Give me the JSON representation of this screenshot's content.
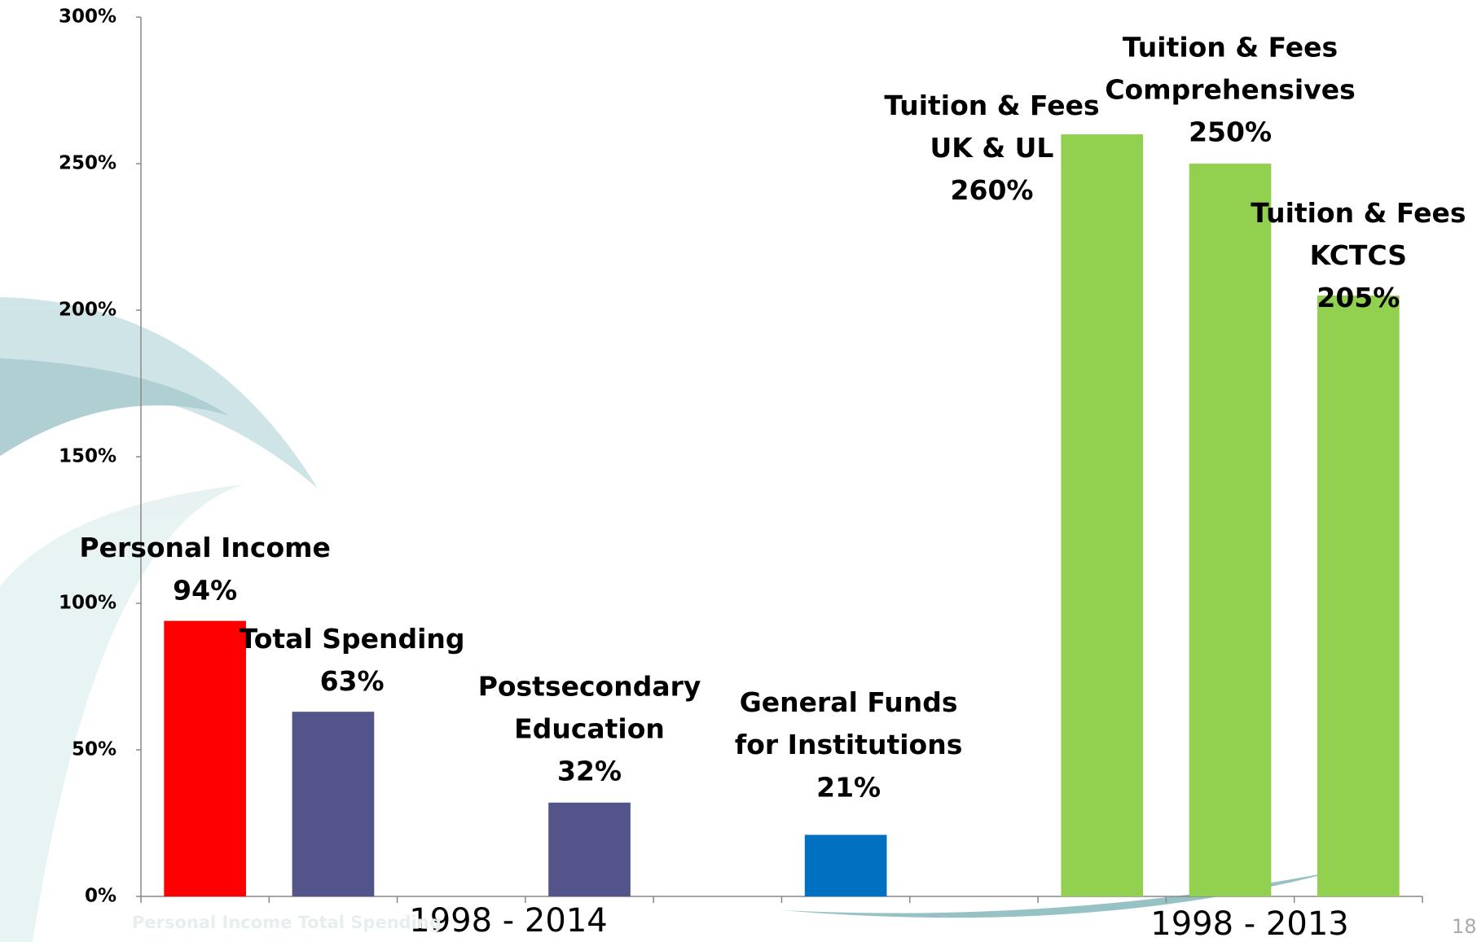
{
  "chart_data": {
    "type": "bar",
    "categories": [
      [
        "Personal Income"
      ],
      [
        "Total Spending"
      ],
      null,
      [
        "Postsecondary",
        "Education"
      ],
      null,
      [
        "General Funds",
        "for Institutions"
      ],
      null,
      [
        "Tuition & Fees",
        "UK & UL"
      ],
      [
        "Tuition & Fees",
        "Comprehensives"
      ],
      [
        "Tuition & Fees",
        "KCTCS"
      ]
    ],
    "values": [
      94,
      63,
      null,
      32,
      null,
      21,
      null,
      260,
      250,
      205
    ],
    "value_labels": [
      "94%",
      "63%",
      null,
      "32%",
      null,
      "21%",
      null,
      "260%",
      "250%",
      "205%"
    ],
    "colors": [
      "#ff0000",
      "#535489",
      null,
      "#535489",
      null,
      "#0070c0",
      null,
      "#92d050",
      "#92d050",
      "#92d050"
    ],
    "ylim": [
      0,
      300
    ],
    "yticks": [
      {
        "value": 0,
        "label": "0%"
      },
      {
        "value": 50,
        "label": "50%"
      },
      {
        "value": 100,
        "label": "100%"
      },
      {
        "value": 150,
        "label": "150%"
      },
      {
        "value": 200,
        "label": "200%"
      },
      {
        "value": 250,
        "label": "250%"
      },
      {
        "value": 300,
        "label": "300%"
      }
    ],
    "group_labels": [
      "1998 - 2014",
      "1998 - 2013"
    ],
    "faint_label": "Personal Income Total Spending",
    "page_number": "18"
  }
}
